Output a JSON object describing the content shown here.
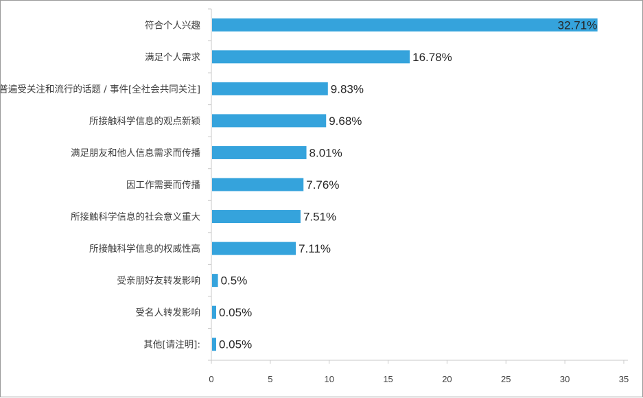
{
  "chart_data": {
    "type": "bar",
    "orientation": "horizontal",
    "categories": [
      "符合个人兴趣",
      "满足个人需求",
      "普遍受关注和流行的话题 / 事件[全社会共同关注]",
      "所接触科学信息的观点新颖",
      "满足朋友和他人信息需求而传播",
      "因工作需要而传播",
      "所接触科学信息的社会意义重大",
      "所接触科学信息的权威性高",
      "受亲朋好友转发影响",
      "受名人转发影响",
      "其他[请注明]:"
    ],
    "values": [
      32.71,
      16.78,
      9.83,
      9.68,
      8.01,
      7.76,
      7.51,
      7.11,
      0.5,
      0.05,
      0.05
    ],
    "value_labels": [
      "32.71%",
      "16.78%",
      "9.83%",
      "9.68%",
      "8.01%",
      "7.76%",
      "7.51%",
      "7.11%",
      "0.5%",
      "0.05%",
      "0.05%"
    ],
    "xlim": [
      0,
      35
    ],
    "x_ticks": [
      0,
      5,
      10,
      15,
      20,
      25,
      30,
      35
    ],
    "bar_color": "#35a3dc",
    "grid": false,
    "legend": "none"
  }
}
